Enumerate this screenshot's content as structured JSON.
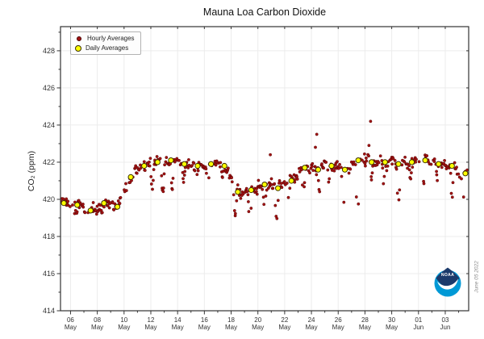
{
  "style": {
    "hourly": "#a11212",
    "hourly_edge": "#4a0000",
    "daily": "#ffff00",
    "daily_edge": "#3a3000",
    "grid": "#ececec",
    "axis": "#333333",
    "tick_label": "#333333",
    "noaa_navy": "#1b3a6b",
    "noaa_blue": "#0099d6"
  },
  "legend": {
    "items": [
      {
        "label": "Hourly Averages",
        "marker": "dot"
      },
      {
        "label": "Daily Averages",
        "marker": "ring"
      }
    ]
  },
  "date_stamp": "June 05 2022",
  "noaa": {
    "text": "NOAA"
  },
  "chart_data": {
    "type": "scatter",
    "title": "Mauna Loa Carbon Dioxide",
    "xlabel": "",
    "ylabel": "CO₂ (ppm)",
    "x_unit": "days since May 05 00:00",
    "xlim": [
      0.25,
      30.75
    ],
    "ylim": [
      414,
      429.3
    ],
    "grid": true,
    "legend_position": "upper-left",
    "y_ticks": [
      414,
      416,
      418,
      420,
      422,
      424,
      426,
      428
    ],
    "x_ticks": [
      [
        1,
        "06",
        "May"
      ],
      [
        3,
        "08",
        "May"
      ],
      [
        5,
        "10",
        "May"
      ],
      [
        7,
        "12",
        "May"
      ],
      [
        9,
        "14",
        "May"
      ],
      [
        11,
        "16",
        "May"
      ],
      [
        13,
        "18",
        "May"
      ],
      [
        15,
        "20",
        "May"
      ],
      [
        17,
        "22",
        "May"
      ],
      [
        19,
        "24",
        "May"
      ],
      [
        21,
        "26",
        "May"
      ],
      [
        23,
        "28",
        "May"
      ],
      [
        25,
        "30",
        "May"
      ],
      [
        27,
        "01",
        "Jun"
      ],
      [
        29,
        "03",
        "Jun"
      ]
    ],
    "series": [
      {
        "name": "Hourly Averages",
        "model": {
          "seed": 20220605,
          "points_per_day": 24,
          "skip_prob": 0.33,
          "noise": 0.36,
          "diurnal_amp": 0.13,
          "day_offset": 0.12,
          "dips": [
            [
              1.45,
              419.2,
              4
            ],
            [
              2.4,
              419.1,
              5
            ],
            [
              3.35,
              419.2,
              4
            ],
            [
              5.25,
              420.0,
              5
            ],
            [
              7.1,
              420.4,
              6
            ],
            [
              7.9,
              420.1,
              6
            ],
            [
              8.6,
              420.4,
              5
            ],
            [
              9.45,
              420.9,
              5
            ],
            [
              10.4,
              421.0,
              4
            ],
            [
              11.3,
              421.0,
              4
            ],
            [
              12.35,
              421.1,
              4
            ],
            [
              13.3,
              419.1,
              7
            ],
            [
              14.4,
              418.4,
              6
            ],
            [
              15.5,
              419.4,
              5
            ],
            [
              16.4,
              418.8,
              7
            ],
            [
              17.3,
              419.9,
              5
            ],
            [
              18.4,
              419.9,
              5
            ],
            [
              19.6,
              420.3,
              5
            ],
            [
              20.3,
              420.8,
              4
            ],
            [
              21.4,
              419.6,
              7
            ],
            [
              22.45,
              418.9,
              7
            ],
            [
              23.5,
              420.9,
              4
            ],
            [
              24.4,
              420.6,
              4
            ],
            [
              25.5,
              419.6,
              7
            ],
            [
              26.4,
              420.9,
              4
            ],
            [
              27.4,
              420.8,
              4
            ],
            [
              28.4,
              421.0,
              4
            ],
            [
              29.5,
              419.7,
              5
            ],
            [
              30.35,
              419.9,
              4
            ]
          ],
          "outliers": [
            [
              19.4,
              423.5
            ],
            [
              23.42,
              424.2
            ],
            [
              15.93,
              422.4
            ],
            [
              19.3,
              422.8
            ],
            [
              23.3,
              422.9
            ]
          ]
        }
      },
      {
        "name": "Daily Averages",
        "dates": [
          "May 05",
          "May 06",
          "May 07",
          "May 08",
          "May 09",
          "May 10",
          "May 11",
          "May 12",
          "May 13",
          "May 14",
          "May 15",
          "May 16",
          "May 17",
          "May 18",
          "May 19",
          "May 20",
          "May 21",
          "May 22",
          "May 23",
          "May 24",
          "May 25",
          "May 26",
          "May 27",
          "May 28",
          "May 29",
          "May 30",
          "May 31",
          "Jun 01",
          "Jun 02",
          "Jun 03",
          "Jun 04"
        ],
        "values": [
          419.8,
          419.7,
          419.4,
          419.8,
          419.6,
          421.2,
          421.8,
          422.0,
          422.1,
          421.9,
          421.8,
          421.9,
          421.8,
          420.4,
          420.5,
          420.8,
          420.6,
          421.0,
          421.7,
          421.6,
          421.8,
          421.6,
          422.1,
          422.0,
          422.0,
          421.9,
          422.0,
          422.1,
          421.9,
          421.8,
          421.4
        ]
      }
    ]
  }
}
